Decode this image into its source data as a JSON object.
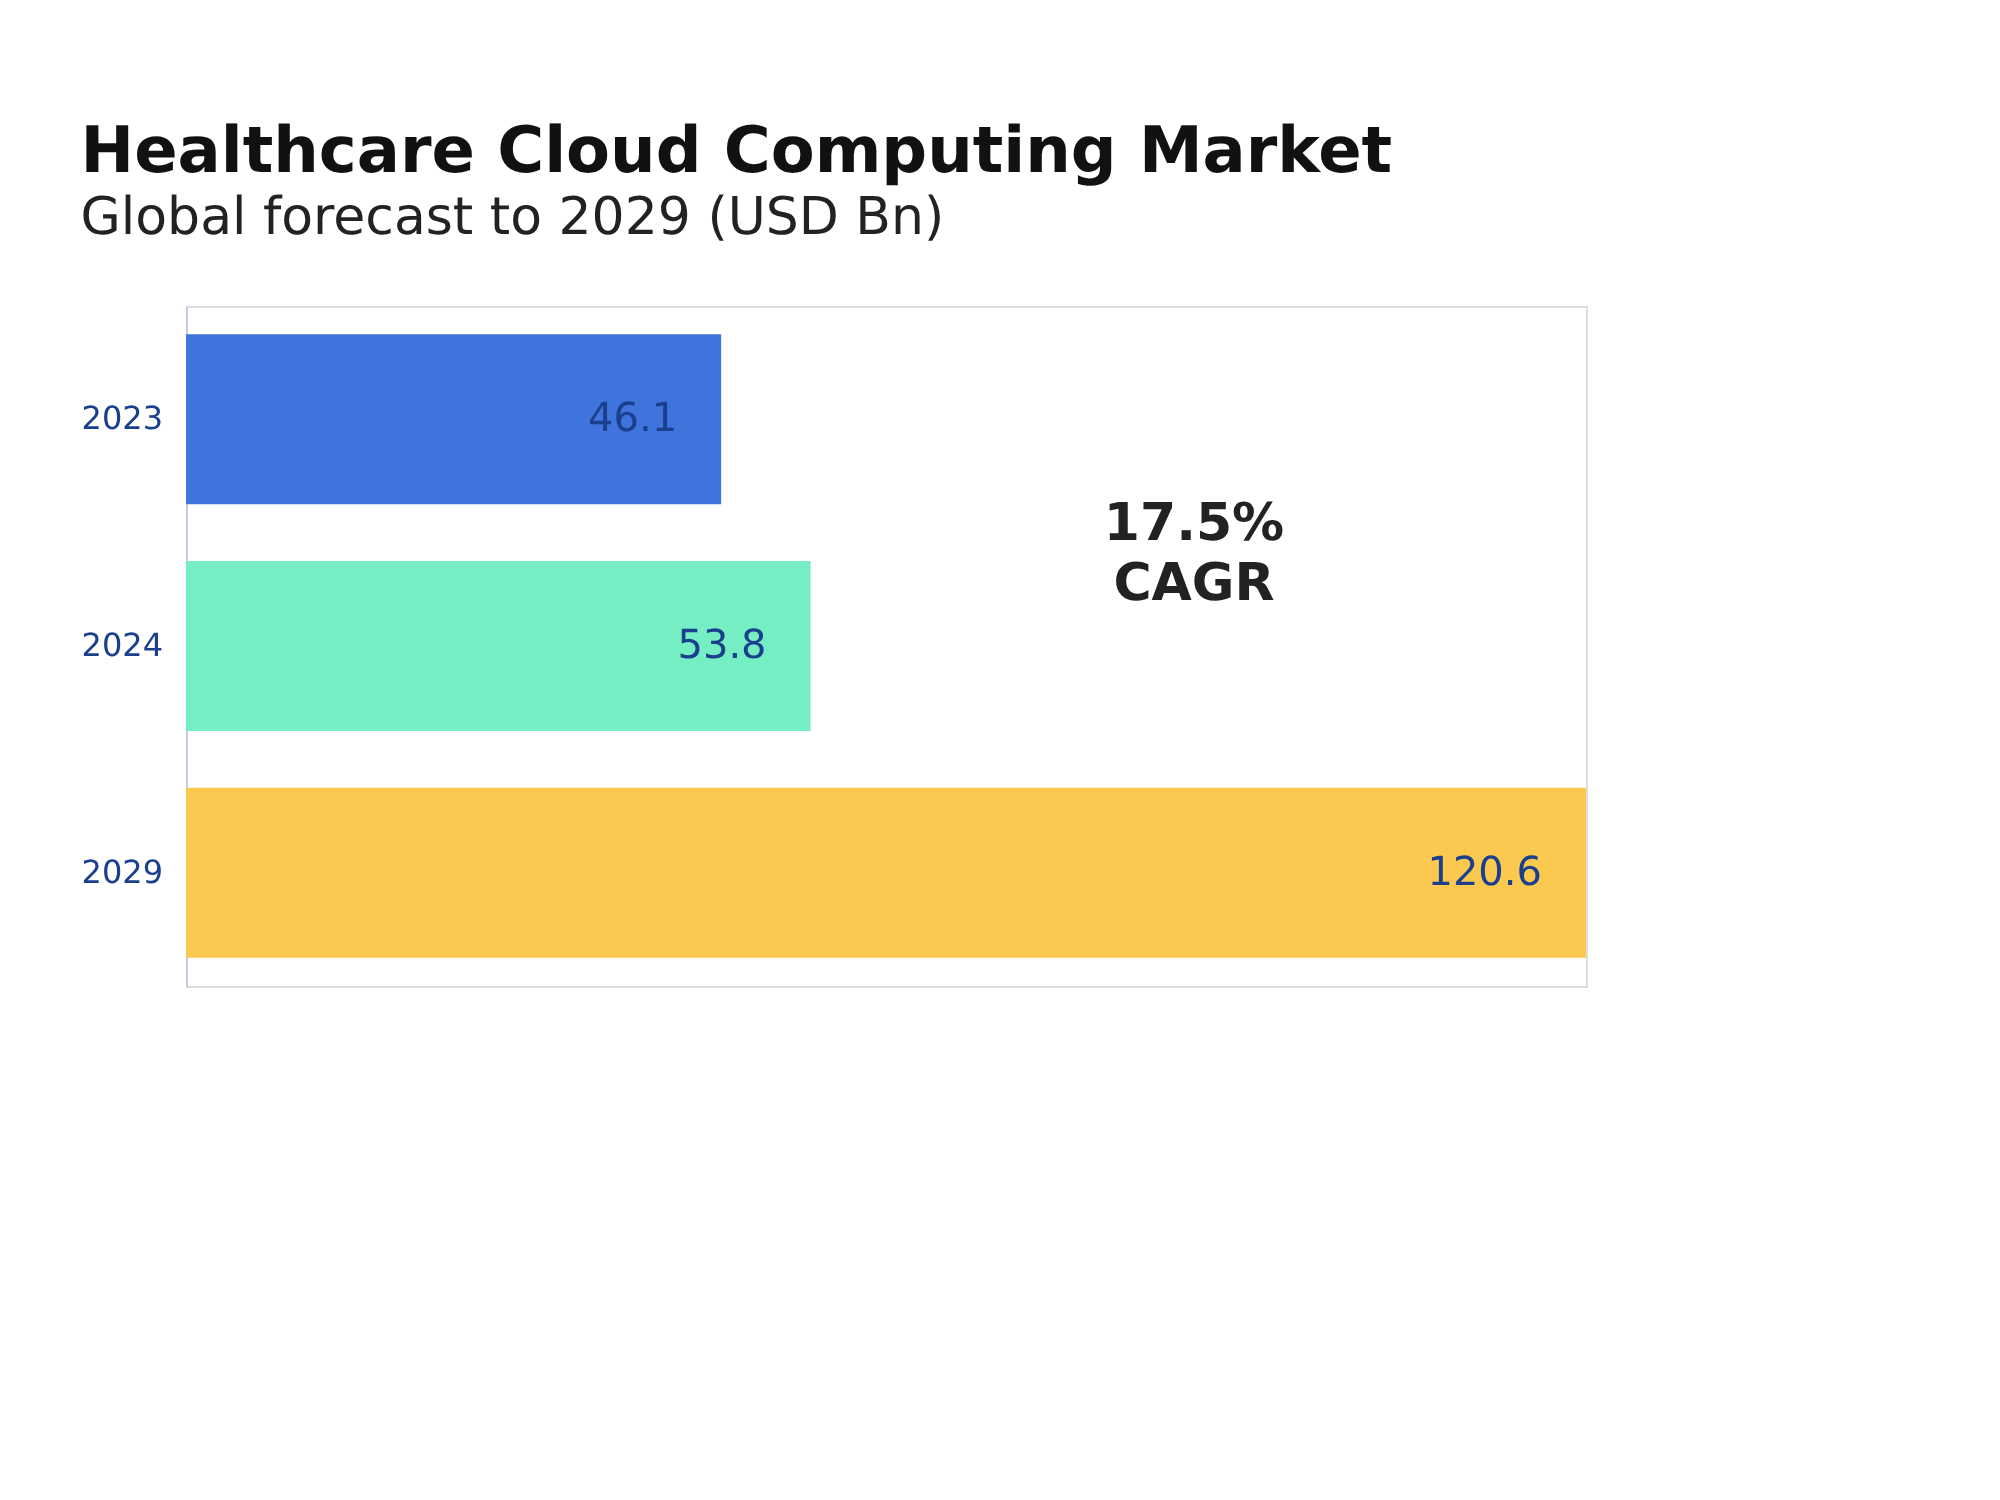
{
  "chart_data": {
    "type": "bar",
    "orientation": "horizontal",
    "title": "Healthcare Cloud Computing Market",
    "subtitle": "Global forecast to 2029 (USD Bn)",
    "categories": [
      "2023",
      "2024",
      "2029"
    ],
    "values": [
      46.1,
      53.8,
      120.6
    ],
    "colors": [
      "#3f74dd",
      "#74eec2",
      "#fcc950"
    ],
    "data_labels": true,
    "annotations": [
      "17.5% CAGR"
    ]
  }
}
